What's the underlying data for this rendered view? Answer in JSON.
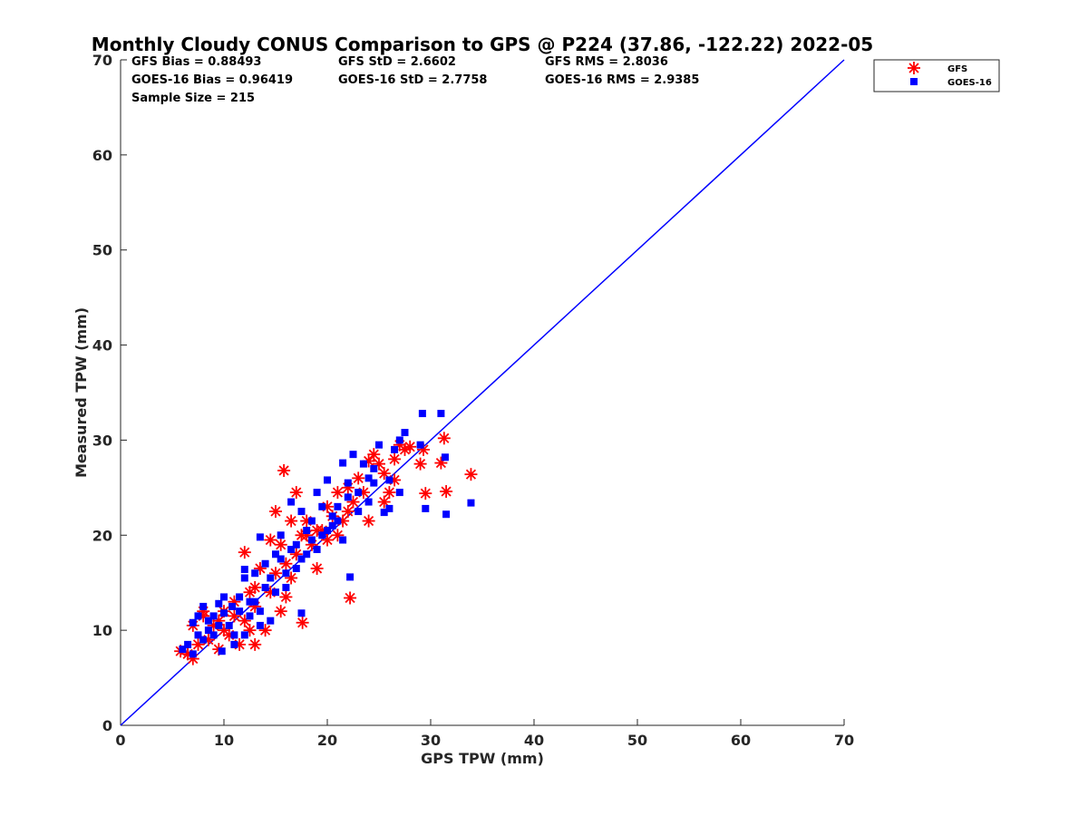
{
  "chart_data": {
    "type": "scatter",
    "title": "Monthly Cloudy CONUS Comparison to GPS @ P224 (37.86, -122.22) 2022-05",
    "xlabel": "GPS TPW (mm)",
    "ylabel": "Measured TPW (mm)",
    "xlim": [
      0,
      70
    ],
    "ylim": [
      0,
      70
    ],
    "xticks": [
      "0",
      "10",
      "20",
      "30",
      "40",
      "50",
      "60",
      "70"
    ],
    "yticks": [
      "0",
      "10",
      "20",
      "30",
      "40",
      "50",
      "60",
      "70"
    ],
    "legend_position": "top-right",
    "grid": false,
    "colors": {
      "gfs": "#ff0000",
      "goes": "#0000ff",
      "reference_line": "#0000ff"
    },
    "stats": [
      [
        "GFS Bias = 0.88493",
        "GFS StD = 2.6602",
        "GFS RMS = 2.8036"
      ],
      [
        "GOES-16 Bias = 0.96419",
        "GOES-16 StD = 2.7758",
        "GOES-16 RMS = 2.9385"
      ],
      [
        "Sample Size = 215"
      ]
    ],
    "reference_line": {
      "x": [
        0,
        70
      ],
      "y": [
        0,
        70
      ]
    },
    "series": [
      {
        "name": "GFS",
        "marker": "asterisk",
        "points": [
          [
            5.8,
            7.8
          ],
          [
            6.5,
            7.5
          ],
          [
            7.0,
            7.0
          ],
          [
            7.5,
            8.5
          ],
          [
            7.0,
            10.5
          ],
          [
            8.0,
            11.5
          ],
          [
            8.5,
            9.0
          ],
          [
            9.0,
            10.5
          ],
          [
            9.5,
            11.0
          ],
          [
            10.0,
            12.0
          ],
          [
            10.5,
            9.5
          ],
          [
            11.0,
            13.0
          ],
          [
            11.5,
            8.5
          ],
          [
            12.0,
            11.0
          ],
          [
            12.5,
            10.0
          ],
          [
            13.0,
            8.5
          ],
          [
            14.0,
            10.0
          ],
          [
            12.0,
            18.2
          ],
          [
            13.5,
            16.5
          ],
          [
            14.5,
            19.5
          ],
          [
            15.0,
            22.5
          ],
          [
            15.5,
            19.0
          ],
          [
            16.0,
            13.5
          ],
          [
            15.8,
            26.8
          ],
          [
            17.0,
            24.5
          ],
          [
            16.5,
            21.5
          ],
          [
            17.5,
            20.0
          ],
          [
            17.6,
            10.8
          ],
          [
            18.0,
            21.5
          ],
          [
            18.5,
            19.0
          ],
          [
            19.0,
            16.5
          ],
          [
            19.5,
            20.5
          ],
          [
            20.0,
            23.0
          ],
          [
            20.5,
            22.0
          ],
          [
            21.0,
            24.5
          ],
          [
            21.5,
            21.5
          ],
          [
            22.0,
            25.0
          ],
          [
            22.2,
            13.4
          ],
          [
            22.5,
            23.5
          ],
          [
            23.0,
            26.0
          ],
          [
            23.5,
            24.5
          ],
          [
            24.0,
            21.5
          ],
          [
            24.5,
            28.5
          ],
          [
            25.0,
            27.5
          ],
          [
            25.5,
            26.5
          ],
          [
            26.0,
            24.5
          ],
          [
            26.5,
            28.0
          ],
          [
            27.0,
            29.5
          ],
          [
            27.5,
            29.0
          ],
          [
            28.0,
            29.3
          ],
          [
            29.0,
            27.5
          ],
          [
            29.3,
            29.0
          ],
          [
            29.5,
            24.4
          ],
          [
            31.0,
            27.6
          ],
          [
            31.3,
            30.2
          ],
          [
            31.5,
            24.6
          ],
          [
            33.9,
            26.4
          ],
          [
            8.0,
            12.0
          ],
          [
            10.0,
            10.0
          ],
          [
            12.5,
            14.0
          ],
          [
            13.0,
            12.5
          ],
          [
            14.5,
            14.0
          ],
          [
            15.0,
            16.0
          ],
          [
            16.0,
            17.0
          ],
          [
            16.5,
            15.5
          ],
          [
            17.0,
            18.0
          ],
          [
            18.0,
            20.0
          ],
          [
            19.0,
            20.5
          ],
          [
            20.0,
            19.5
          ],
          [
            21.0,
            20.0
          ],
          [
            22.0,
            22.5
          ],
          [
            24.0,
            27.8
          ],
          [
            25.5,
            23.5
          ],
          [
            26.5,
            25.8
          ],
          [
            9.5,
            8.0
          ],
          [
            11.0,
            11.5
          ],
          [
            13.0,
            14.5
          ],
          [
            15.5,
            12.0
          ]
        ]
      },
      {
        "name": "GOES-16",
        "marker": "square",
        "points": [
          [
            6.0,
            8.0
          ],
          [
            6.5,
            8.5
          ],
          [
            7.0,
            7.5
          ],
          [
            7.5,
            9.5
          ],
          [
            7.0,
            10.8
          ],
          [
            8.0,
            12.5
          ],
          [
            8.5,
            10.0
          ],
          [
            9.0,
            11.5
          ],
          [
            9.5,
            12.8
          ],
          [
            9.8,
            7.8
          ],
          [
            10.0,
            13.5
          ],
          [
            10.5,
            10.5
          ],
          [
            11.0,
            9.5
          ],
          [
            11.5,
            12.0
          ],
          [
            12.0,
            15.5
          ],
          [
            12.5,
            11.5
          ],
          [
            13.0,
            13.0
          ],
          [
            13.5,
            10.5
          ],
          [
            14.0,
            14.5
          ],
          [
            14.5,
            11.0
          ],
          [
            12.0,
            16.4
          ],
          [
            13.5,
            19.8
          ],
          [
            14.5,
            15.5
          ],
          [
            15.0,
            18.0
          ],
          [
            15.5,
            20.0
          ],
          [
            16.0,
            14.5
          ],
          [
            16.5,
            23.5
          ],
          [
            17.0,
            19.0
          ],
          [
            17.5,
            22.5
          ],
          [
            17.5,
            11.8
          ],
          [
            18.0,
            20.5
          ],
          [
            18.5,
            21.5
          ],
          [
            19.0,
            24.5
          ],
          [
            19.5,
            23.0
          ],
          [
            20.0,
            25.8
          ],
          [
            20.5,
            22.0
          ],
          [
            21.0,
            21.5
          ],
          [
            21.5,
            27.6
          ],
          [
            22.0,
            25.5
          ],
          [
            22.2,
            15.6
          ],
          [
            22.5,
            28.5
          ],
          [
            23.0,
            22.5
          ],
          [
            23.5,
            27.5
          ],
          [
            24.0,
            26.0
          ],
          [
            24.5,
            27.0
          ],
          [
            25.0,
            29.5
          ],
          [
            25.5,
            22.4
          ],
          [
            26.0,
            25.8
          ],
          [
            26.5,
            29.0
          ],
          [
            27.0,
            30.0
          ],
          [
            27.5,
            30.8
          ],
          [
            29.0,
            29.5
          ],
          [
            29.2,
            32.8
          ],
          [
            29.5,
            22.8
          ],
          [
            31.0,
            32.8
          ],
          [
            31.4,
            28.2
          ],
          [
            31.5,
            22.2
          ],
          [
            33.9,
            23.4
          ],
          [
            7.5,
            11.5
          ],
          [
            8.5,
            11.0
          ],
          [
            9.0,
            9.5
          ],
          [
            10.0,
            11.8
          ],
          [
            10.8,
            12.5
          ],
          [
            11.5,
            13.5
          ],
          [
            12.5,
            13.0
          ],
          [
            13.0,
            16.0
          ],
          [
            14.0,
            17.0
          ],
          [
            15.5,
            17.5
          ],
          [
            16.5,
            18.5
          ],
          [
            17.5,
            17.5
          ],
          [
            18.5,
            19.5
          ],
          [
            19.5,
            20.0
          ],
          [
            20.5,
            21.0
          ],
          [
            21.5,
            19.5
          ],
          [
            23.0,
            24.5
          ],
          [
            24.5,
            25.5
          ],
          [
            26.0,
            22.8
          ],
          [
            27.0,
            24.5
          ],
          [
            8.0,
            9.0
          ],
          [
            9.5,
            10.5
          ],
          [
            11.0,
            8.5
          ],
          [
            12.0,
            9.5
          ],
          [
            13.5,
            12.0
          ],
          [
            15.0,
            14.0
          ],
          [
            16.0,
            16.0
          ],
          [
            17.0,
            16.5
          ],
          [
            18.0,
            18.0
          ],
          [
            19.0,
            18.5
          ],
          [
            20.0,
            20.5
          ],
          [
            21.0,
            23.0
          ],
          [
            22.0,
            24.0
          ],
          [
            24.0,
            23.5
          ]
        ]
      }
    ]
  }
}
